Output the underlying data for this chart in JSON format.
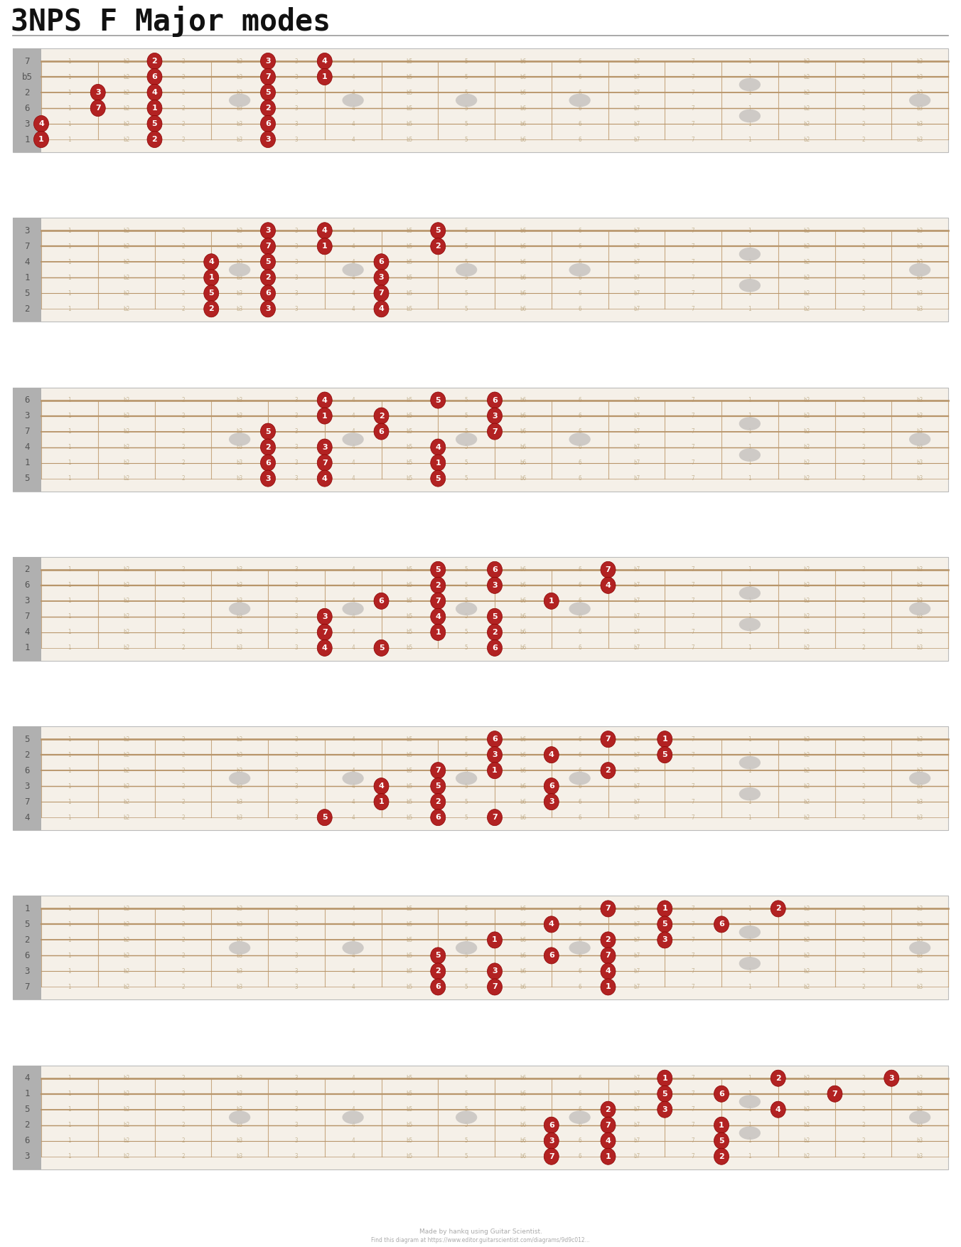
{
  "title": "3NPS F Major modes",
  "bg_color": "#f5f0e8",
  "fret_line_color": "#c8a882",
  "string_color": "#b8956a",
  "sidebar_color": "#b0b0b0",
  "marker_color": "#b22222",
  "note_border_color": "#8b0000",
  "inlay_color": "#c8c4c0",
  "num_strings": 6,
  "num_frets": 16,
  "sidebar_labels": [
    [
      "7",
      "b5",
      "2",
      "6",
      "3",
      "1"
    ],
    [
      "3",
      "7",
      "4",
      "1",
      "5",
      "2"
    ],
    [
      "6",
      "3",
      "7",
      "4",
      "1",
      "5"
    ],
    [
      "2",
      "6",
      "3",
      "7",
      "4",
      "1"
    ],
    [
      "5",
      "2",
      "6",
      "3",
      "7",
      "4"
    ],
    [
      "1",
      "5",
      "2",
      "6",
      "3",
      "7"
    ],
    [
      "4",
      "1",
      "5",
      "2",
      "6",
      "3"
    ]
  ],
  "diagrams": [
    {
      "notes": [
        {
          "string": 0,
          "fret": 2,
          "label": "2"
        },
        {
          "string": 0,
          "fret": 4,
          "label": "3"
        },
        {
          "string": 0,
          "fret": 5,
          "label": "4"
        },
        {
          "string": 1,
          "fret": 2,
          "label": "6"
        },
        {
          "string": 1,
          "fret": 4,
          "label": "7"
        },
        {
          "string": 1,
          "fret": 5,
          "label": "1"
        },
        {
          "string": 2,
          "fret": 1,
          "label": "3"
        },
        {
          "string": 2,
          "fret": 2,
          "label": "4"
        },
        {
          "string": 2,
          "fret": 4,
          "label": "5"
        },
        {
          "string": 3,
          "fret": 1,
          "label": "7"
        },
        {
          "string": 3,
          "fret": 2,
          "label": "1"
        },
        {
          "string": 3,
          "fret": 4,
          "label": "2"
        },
        {
          "string": 4,
          "fret": 0,
          "label": "4"
        },
        {
          "string": 4,
          "fret": 2,
          "label": "5"
        },
        {
          "string": 4,
          "fret": 4,
          "label": "6"
        },
        {
          "string": 5,
          "fret": 0,
          "label": "1"
        },
        {
          "string": 5,
          "fret": 2,
          "label": "2"
        },
        {
          "string": 5,
          "fret": 4,
          "label": "3"
        }
      ]
    },
    {
      "notes": [
        {
          "string": 0,
          "fret": 4,
          "label": "3"
        },
        {
          "string": 0,
          "fret": 5,
          "label": "4"
        },
        {
          "string": 0,
          "fret": 7,
          "label": "5"
        },
        {
          "string": 1,
          "fret": 4,
          "label": "7"
        },
        {
          "string": 1,
          "fret": 5,
          "label": "1"
        },
        {
          "string": 1,
          "fret": 7,
          "label": "2"
        },
        {
          "string": 2,
          "fret": 3,
          "label": "4"
        },
        {
          "string": 2,
          "fret": 4,
          "label": "5"
        },
        {
          "string": 2,
          "fret": 6,
          "label": "6"
        },
        {
          "string": 3,
          "fret": 3,
          "label": "1"
        },
        {
          "string": 3,
          "fret": 4,
          "label": "2"
        },
        {
          "string": 3,
          "fret": 6,
          "label": "3"
        },
        {
          "string": 4,
          "fret": 3,
          "label": "5"
        },
        {
          "string": 4,
          "fret": 4,
          "label": "6"
        },
        {
          "string": 4,
          "fret": 6,
          "label": "7"
        },
        {
          "string": 5,
          "fret": 3,
          "label": "2"
        },
        {
          "string": 5,
          "fret": 4,
          "label": "3"
        },
        {
          "string": 5,
          "fret": 6,
          "label": "4"
        }
      ]
    },
    {
      "notes": [
        {
          "string": 0,
          "fret": 5,
          "label": "4"
        },
        {
          "string": 0,
          "fret": 7,
          "label": "5"
        },
        {
          "string": 0,
          "fret": 8,
          "label": "6"
        },
        {
          "string": 1,
          "fret": 5,
          "label": "1"
        },
        {
          "string": 1,
          "fret": 6,
          "label": "2"
        },
        {
          "string": 1,
          "fret": 8,
          "label": "3"
        },
        {
          "string": 2,
          "fret": 4,
          "label": "5"
        },
        {
          "string": 2,
          "fret": 6,
          "label": "6"
        },
        {
          "string": 2,
          "fret": 8,
          "label": "7"
        },
        {
          "string": 3,
          "fret": 4,
          "label": "2"
        },
        {
          "string": 3,
          "fret": 5,
          "label": "3"
        },
        {
          "string": 3,
          "fret": 7,
          "label": "4"
        },
        {
          "string": 4,
          "fret": 4,
          "label": "6"
        },
        {
          "string": 4,
          "fret": 5,
          "label": "7"
        },
        {
          "string": 4,
          "fret": 7,
          "label": "1"
        },
        {
          "string": 5,
          "fret": 4,
          "label": "3"
        },
        {
          "string": 5,
          "fret": 5,
          "label": "4"
        },
        {
          "string": 5,
          "fret": 7,
          "label": "5"
        }
      ]
    },
    {
      "notes": [
        {
          "string": 0,
          "fret": 7,
          "label": "5"
        },
        {
          "string": 0,
          "fret": 8,
          "label": "6"
        },
        {
          "string": 0,
          "fret": 10,
          "label": "7"
        },
        {
          "string": 1,
          "fret": 7,
          "label": "2"
        },
        {
          "string": 1,
          "fret": 8,
          "label": "3"
        },
        {
          "string": 1,
          "fret": 10,
          "label": "4"
        },
        {
          "string": 2,
          "fret": 6,
          "label": "6"
        },
        {
          "string": 2,
          "fret": 7,
          "label": "7"
        },
        {
          "string": 2,
          "fret": 9,
          "label": "1"
        },
        {
          "string": 3,
          "fret": 5,
          "label": "3"
        },
        {
          "string": 3,
          "fret": 7,
          "label": "4"
        },
        {
          "string": 3,
          "fret": 8,
          "label": "5"
        },
        {
          "string": 4,
          "fret": 5,
          "label": "7"
        },
        {
          "string": 4,
          "fret": 7,
          "label": "1"
        },
        {
          "string": 4,
          "fret": 8,
          "label": "2"
        },
        {
          "string": 5,
          "fret": 5,
          "label": "4"
        },
        {
          "string": 5,
          "fret": 6,
          "label": "5"
        },
        {
          "string": 5,
          "fret": 8,
          "label": "6"
        }
      ]
    },
    {
      "notes": [
        {
          "string": 0,
          "fret": 8,
          "label": "6"
        },
        {
          "string": 0,
          "fret": 10,
          "label": "7"
        },
        {
          "string": 0,
          "fret": 11,
          "label": "1"
        },
        {
          "string": 1,
          "fret": 8,
          "label": "3"
        },
        {
          "string": 1,
          "fret": 9,
          "label": "4"
        },
        {
          "string": 1,
          "fret": 11,
          "label": "5"
        },
        {
          "string": 2,
          "fret": 7,
          "label": "7"
        },
        {
          "string": 2,
          "fret": 8,
          "label": "1"
        },
        {
          "string": 2,
          "fret": 10,
          "label": "2"
        },
        {
          "string": 3,
          "fret": 6,
          "label": "4"
        },
        {
          "string": 3,
          "fret": 7,
          "label": "5"
        },
        {
          "string": 3,
          "fret": 9,
          "label": "6"
        },
        {
          "string": 4,
          "fret": 6,
          "label": "1"
        },
        {
          "string": 4,
          "fret": 7,
          "label": "2"
        },
        {
          "string": 4,
          "fret": 9,
          "label": "3"
        },
        {
          "string": 5,
          "fret": 5,
          "label": "5"
        },
        {
          "string": 5,
          "fret": 7,
          "label": "6"
        },
        {
          "string": 5,
          "fret": 8,
          "label": "7"
        }
      ]
    },
    {
      "notes": [
        {
          "string": 0,
          "fret": 10,
          "label": "7"
        },
        {
          "string": 0,
          "fret": 11,
          "label": "1"
        },
        {
          "string": 0,
          "fret": 13,
          "label": "2"
        },
        {
          "string": 1,
          "fret": 9,
          "label": "4"
        },
        {
          "string": 1,
          "fret": 11,
          "label": "5"
        },
        {
          "string": 1,
          "fret": 12,
          "label": "6"
        },
        {
          "string": 2,
          "fret": 8,
          "label": "1"
        },
        {
          "string": 2,
          "fret": 10,
          "label": "2"
        },
        {
          "string": 2,
          "fret": 11,
          "label": "3"
        },
        {
          "string": 3,
          "fret": 7,
          "label": "5"
        },
        {
          "string": 3,
          "fret": 9,
          "label": "6"
        },
        {
          "string": 3,
          "fret": 10,
          "label": "7"
        },
        {
          "string": 4,
          "fret": 7,
          "label": "2"
        },
        {
          "string": 4,
          "fret": 8,
          "label": "3"
        },
        {
          "string": 4,
          "fret": 10,
          "label": "4"
        },
        {
          "string": 5,
          "fret": 7,
          "label": "6"
        },
        {
          "string": 5,
          "fret": 8,
          "label": "7"
        },
        {
          "string": 5,
          "fret": 10,
          "label": "1"
        }
      ]
    },
    {
      "notes": [
        {
          "string": 0,
          "fret": 11,
          "label": "1"
        },
        {
          "string": 0,
          "fret": 13,
          "label": "2"
        },
        {
          "string": 0,
          "fret": 15,
          "label": "3"
        },
        {
          "string": 1,
          "fret": 11,
          "label": "5"
        },
        {
          "string": 1,
          "fret": 12,
          "label": "6"
        },
        {
          "string": 1,
          "fret": 14,
          "label": "7"
        },
        {
          "string": 2,
          "fret": 10,
          "label": "2"
        },
        {
          "string": 2,
          "fret": 11,
          "label": "3"
        },
        {
          "string": 2,
          "fret": 13,
          "label": "4"
        },
        {
          "string": 3,
          "fret": 9,
          "label": "6"
        },
        {
          "string": 3,
          "fret": 10,
          "label": "7"
        },
        {
          "string": 3,
          "fret": 12,
          "label": "1"
        },
        {
          "string": 4,
          "fret": 9,
          "label": "3"
        },
        {
          "string": 4,
          "fret": 10,
          "label": "4"
        },
        {
          "string": 4,
          "fret": 12,
          "label": "5"
        },
        {
          "string": 5,
          "fret": 9,
          "label": "7"
        },
        {
          "string": 5,
          "fret": 10,
          "label": "1"
        },
        {
          "string": 5,
          "fret": 12,
          "label": "2"
        }
      ]
    }
  ]
}
